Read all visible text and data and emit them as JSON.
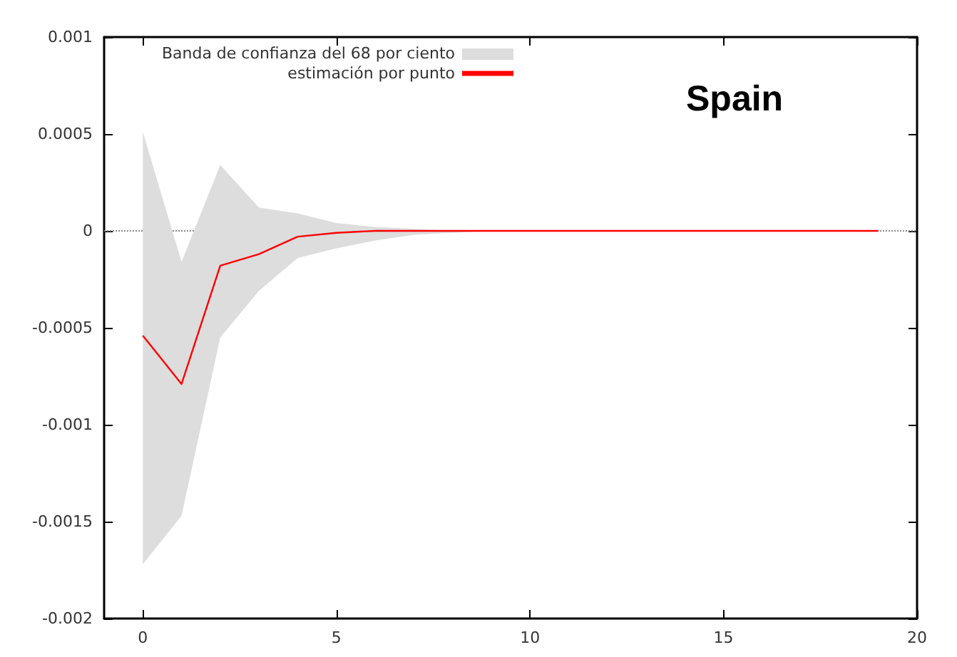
{
  "chart_data": {
    "type": "line",
    "title": "Spain",
    "x": [
      0,
      1,
      2,
      3,
      4,
      5,
      6,
      7,
      8,
      9,
      10,
      11,
      12,
      13,
      14,
      15,
      16,
      17,
      18,
      19
    ],
    "series": [
      {
        "name": "estimación por punto",
        "color": "#ff0000",
        "values": [
          -0.00054,
          -0.00079,
          -0.00018,
          -0.00012,
          -3e-05,
          -1e-05,
          0,
          0,
          0,
          0,
          0,
          0,
          0,
          0,
          0,
          0,
          0,
          0,
          0,
          0
        ],
        "lower": [
          -0.00172,
          -0.00147,
          -0.00055,
          -0.00031,
          -0.00014,
          -9e-05,
          -5e-05,
          -2e-05,
          -1e-05,
          0,
          0,
          0,
          0,
          0,
          0,
          0,
          0,
          0,
          0,
          0
        ],
        "upper": [
          0.00051,
          -0.00016,
          0.00034,
          0.00012,
          9e-05,
          4e-05,
          2e-05,
          1e-05,
          0,
          0,
          0,
          0,
          0,
          0,
          0,
          0,
          0,
          0,
          0,
          0
        ]
      }
    ],
    "annotations": [
      "Banda de confianza del 68 por ciento"
    ],
    "xlim": [
      -1,
      20
    ],
    "xticks": [
      0,
      5,
      10,
      15,
      20
    ],
    "ylim": [
      -0.002,
      0.001
    ],
    "yticks": [
      -0.002,
      -0.0015,
      -0.001,
      -0.0005,
      0,
      0.0005,
      0.001
    ],
    "ref_lines": [
      {
        "axis": "y",
        "value": 0,
        "color": "#888888",
        "line_style": "dotted"
      }
    ],
    "grid": false,
    "legend": "top left",
    "marker": "none",
    "line_style": "solid"
  }
}
